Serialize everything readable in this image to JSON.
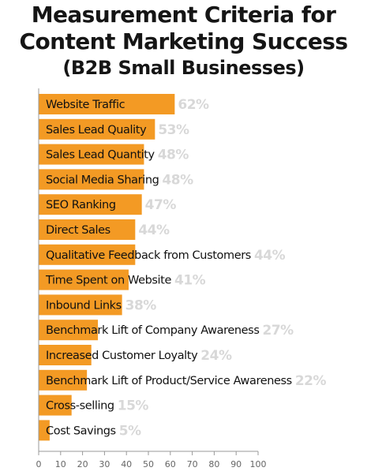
{
  "title_line1": "Measurement Criteria for",
  "title_line2": "Content Marketing Success",
  "subtitle": "(B2B Small Businesses)",
  "colors": {
    "bar": "#F39A24",
    "value_label": "#D8D8D8",
    "axis": "#999999",
    "text": "#111111"
  },
  "chart_data": {
    "type": "bar",
    "orientation": "horizontal",
    "title": "Measurement Criteria for Content Marketing Success",
    "subtitle": "(B2B Small Businesses)",
    "categories": [
      "Website Traffic",
      "Sales Lead Quality",
      "Sales Lead Quantity",
      "Social Media Sharing",
      "SEO Ranking",
      "Direct Sales",
      "Qualitative Feedback from Customers",
      "Time Spent on Website",
      "Inbound Links",
      "Benchmark Lift of Company Awareness",
      "Increased Customer Loyalty",
      "Benchmark Lift of Product/Service Awareness",
      "Cross-selling",
      "Cost Savings"
    ],
    "values": [
      62,
      53,
      48,
      48,
      47,
      44,
      44,
      41,
      38,
      27,
      24,
      22,
      15,
      5
    ],
    "value_labels": [
      "62%",
      "53%",
      "48%",
      "48%",
      "47%",
      "44%",
      "44%",
      "41%",
      "38%",
      "27%",
      "24%",
      "22%",
      "15%",
      "5%"
    ],
    "xlim": [
      0,
      100
    ],
    "xticks": [
      "0",
      "10",
      "20",
      "30",
      "40",
      "50",
      "60",
      "70",
      "80",
      "90",
      "100"
    ],
    "xlabel": "",
    "ylabel": "",
    "grid": false,
    "legend": "none"
  }
}
